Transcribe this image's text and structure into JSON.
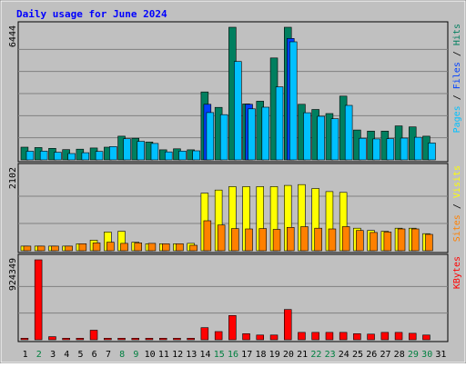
{
  "chart_data": {
    "title": "Daily usage for June 2024",
    "type": "bar",
    "days": [
      "1",
      "2",
      "3",
      "4",
      "5",
      "6",
      "7",
      "8",
      "9",
      "10",
      "11",
      "12",
      "13",
      "14",
      "15",
      "16",
      "17",
      "18",
      "19",
      "20",
      "21",
      "22",
      "23",
      "24",
      "25",
      "26",
      "27",
      "28",
      "29",
      "30",
      "31"
    ],
    "weekend_days": [
      "2",
      "8",
      "9",
      "15",
      "16",
      "22",
      "23",
      "29",
      "30"
    ],
    "panels": [
      {
        "id": "top",
        "max_label": "6444",
        "ymax": 6444,
        "legend": [
          "Pages",
          "Files",
          "Hits"
        ],
        "series": [
          {
            "name": "Hits",
            "color": "#007f5f",
            "values": [
              620,
              600,
              560,
              500,
              520,
              580,
              620,
              1150,
              1050,
              870,
              490,
              540,
              490,
              3300,
              2550,
              6444,
              2720,
              2850,
              4950,
              6444,
              2700,
              2450,
              2250,
              3100,
              1450,
              1400,
              1400,
              1650,
              1600,
              1150,
              0
            ]
          },
          {
            "name": "Files",
            "color": "#0040ff",
            "values": [
              0,
              0,
              0,
              0,
              0,
              0,
              0,
              0,
              0,
              0,
              0,
              0,
              0,
              2700,
              0,
              0,
              2700,
              0,
              0,
              5900,
              0,
              0,
              0,
              0,
              0,
              0,
              0,
              0,
              0,
              0,
              0
            ]
          },
          {
            "name": "Pages",
            "color": "#00c0ff",
            "values": [
              420,
              430,
              370,
              310,
              350,
              410,
              650,
              1030,
              900,
              800,
              390,
              430,
              440,
              2300,
              2200,
              4780,
              2480,
              2560,
              3550,
              5740,
              2290,
              2120,
              2000,
              2650,
              1050,
              1020,
              1030,
              1060,
              1100,
              820,
              0
            ]
          }
        ]
      },
      {
        "id": "middle",
        "max_label": "2102",
        "ymax": 2102,
        "legend": [
          "Sites",
          "Visits"
        ],
        "series": [
          {
            "name": "Visits",
            "color": "#ffff00",
            "values": [
              120,
              120,
              120,
              120,
              180,
              270,
              480,
              500,
              220,
              180,
              180,
              180,
              190,
              1480,
              1560,
              1650,
              1650,
              1650,
              1650,
              1680,
              1700,
              1600,
              1520,
              1500,
              580,
              520,
              500,
              580,
              580,
              440,
              0
            ]
          },
          {
            "name": "Sites",
            "color": "#ff8000",
            "values": [
              120,
              120,
              120,
              120,
              180,
              200,
              220,
              190,
              200,
              190,
              180,
              180,
              140,
              770,
              660,
              570,
              560,
              570,
              550,
              600,
              620,
              580,
              560,
              620,
              520,
              470,
              480,
              560,
              560,
              420,
              0
            ]
          }
        ]
      },
      {
        "id": "bottom",
        "max_label": "924349",
        "ymax": 924349,
        "legend": [
          "KBytes"
        ],
        "series": [
          {
            "name": "KBytes",
            "color": "#ff0000",
            "values": [
              18000,
              924349,
              36000,
              18000,
              18000,
              110000,
              18000,
              18000,
              18000,
              18000,
              18000,
              18000,
              18000,
              140000,
              95000,
              280000,
              70000,
              55000,
              55000,
              350000,
              85000,
              85000,
              85000,
              85000,
              70000,
              65000,
              85000,
              85000,
              75000,
              55000,
              0
            ]
          }
        ]
      }
    ]
  },
  "colors": {
    "background": "#c0c0c0",
    "plot_background": "#c0c0c0",
    "title": "#0000ff",
    "gridline": "#808080",
    "weekday_label": "#000000",
    "weekend_label": "#008040"
  },
  "legend_colors": {
    "Pages": "#00c0ff",
    "Files": "#0040ff",
    "Hits": "#007f5f",
    "Sites": "#ff8000",
    "Visits": "#ffff00",
    "KBytes": "#ff0000",
    "sep": "#000000"
  }
}
